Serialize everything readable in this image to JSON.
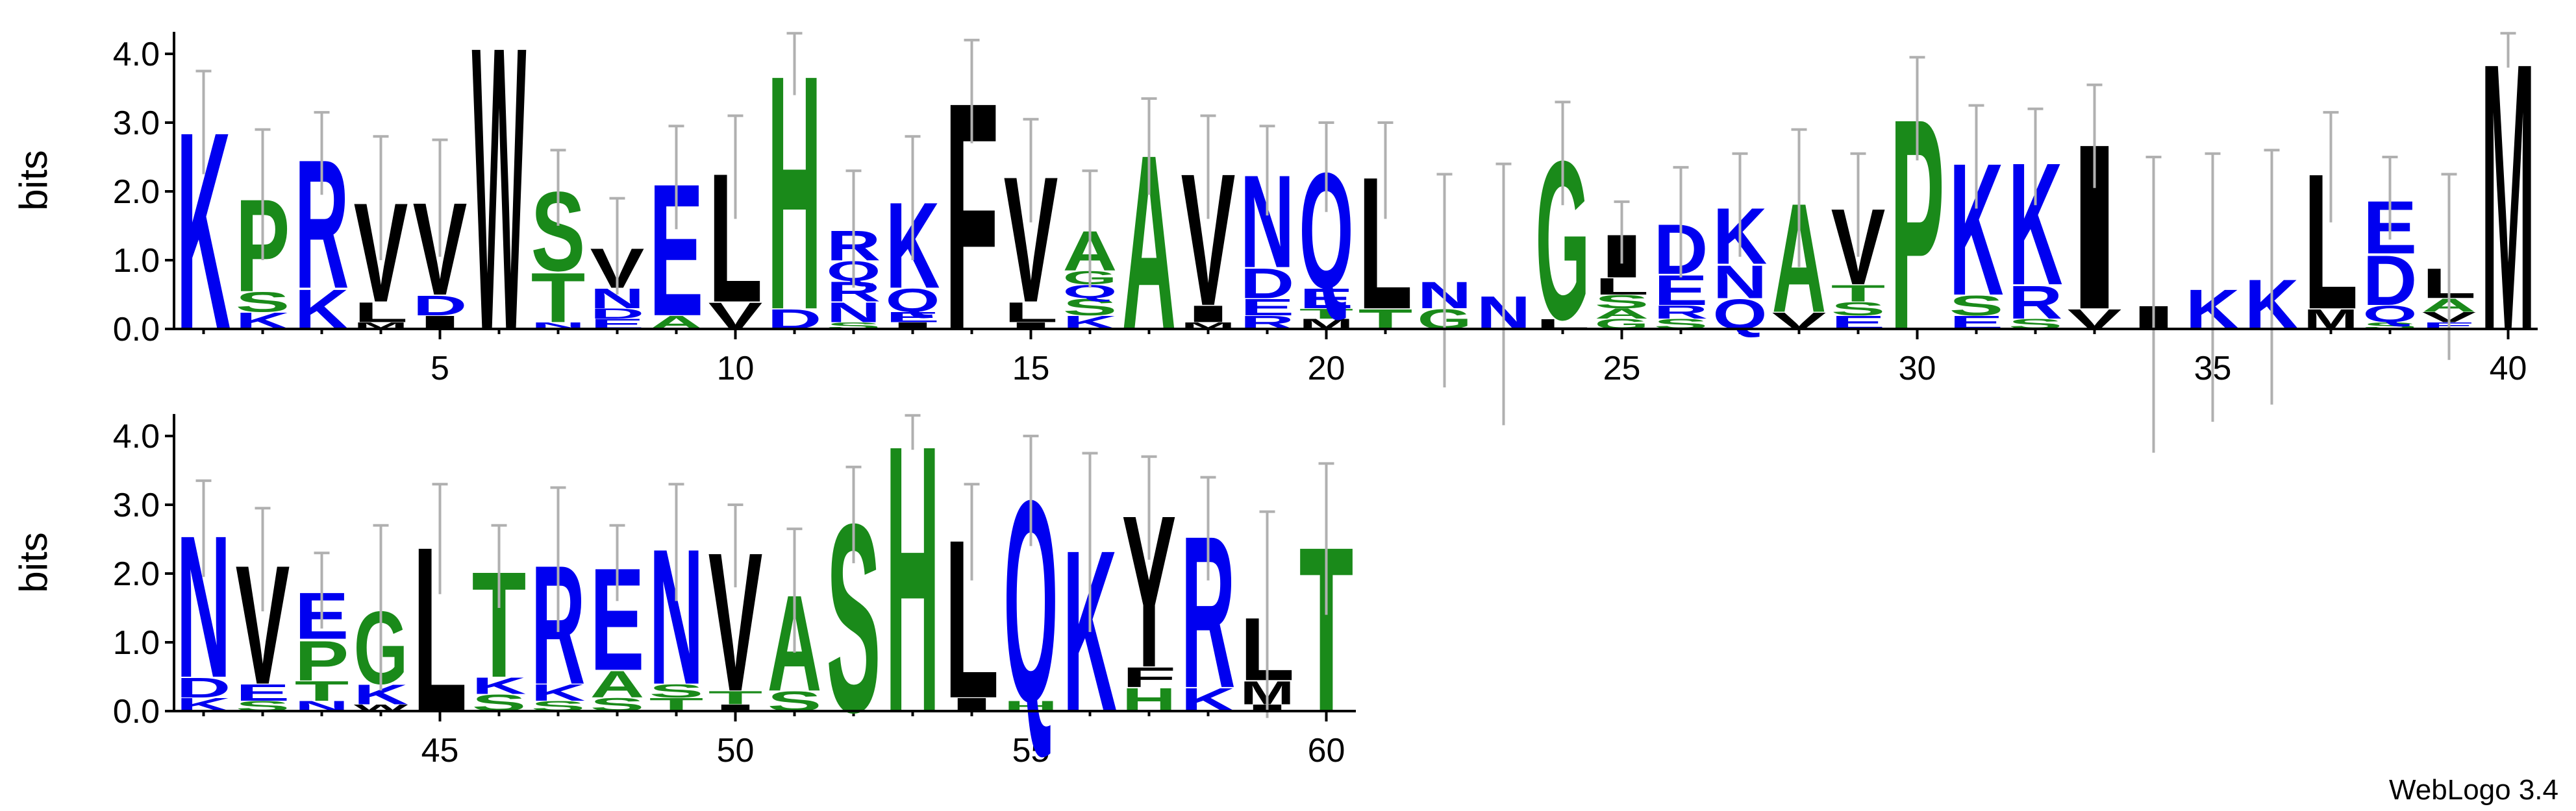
{
  "chart_data": [
    {
      "type": "logo",
      "ylabel": "bits",
      "x": [
        1,
        2,
        3,
        4,
        5,
        6,
        7,
        8,
        9,
        10,
        11,
        12,
        13,
        14,
        15,
        16,
        17,
        18,
        19,
        20,
        21,
        22,
        23,
        24,
        25,
        26,
        27,
        28,
        29,
        30,
        31,
        32,
        33,
        34,
        35,
        36,
        37,
        38,
        39,
        40
      ],
      "letters": [
        [
          "K"
        ],
        [
          "K",
          "S",
          "P"
        ],
        [
          "K",
          "R"
        ],
        [
          "M",
          "L",
          "V"
        ],
        [
          "I",
          "D",
          "V"
        ],
        [
          "W"
        ],
        [
          "N",
          "T",
          "S"
        ],
        [
          "E",
          "D",
          "N",
          "V"
        ],
        [
          "A",
          "E"
        ],
        [
          "V",
          "L"
        ],
        [
          "D",
          "H"
        ],
        [
          "S",
          "N",
          "R",
          "Q",
          "R"
        ],
        [
          "I",
          "E",
          "Q",
          "K"
        ],
        [
          "F"
        ],
        [
          "I",
          "L",
          "V"
        ],
        [
          "K",
          "S",
          "Q",
          "G",
          "A"
        ],
        [
          "A"
        ],
        [
          "M",
          "I",
          "V"
        ],
        [
          "R",
          "E",
          "D",
          "N"
        ],
        [
          "M",
          "T",
          "E",
          "Q"
        ],
        [
          "T",
          "L"
        ],
        [
          "G",
          "N"
        ],
        [
          "N"
        ],
        [
          "L",
          "G"
        ],
        [
          "G",
          "A",
          "S",
          "L",
          "I"
        ],
        [
          "S",
          "R",
          "E",
          "D"
        ],
        [
          "Q",
          "N",
          "K"
        ],
        [
          "V",
          "A"
        ],
        [
          "E",
          "S",
          "T",
          "V"
        ],
        [
          "P"
        ],
        [
          "E",
          "S",
          "K"
        ],
        [
          "S",
          "R",
          "K"
        ],
        [
          "V",
          "I"
        ],
        [
          "I"
        ],
        [
          "K"
        ],
        [
          "K"
        ],
        [
          "M",
          "L"
        ],
        [
          "S",
          "Q",
          "D",
          "E"
        ],
        [
          "E",
          "V",
          "A",
          "L"
        ],
        [
          "M"
        ]
      ],
      "bits": [
        [
          3.0
        ],
        [
          0.25,
          0.3,
          1.4
        ],
        [
          0.6,
          1.95
        ],
        [
          0.1,
          0.3,
          1.5
        ],
        [
          0.2,
          0.3,
          1.4
        ],
        [
          4.3
        ],
        [
          0.1,
          0.75,
          1.2
        ],
        [
          0.15,
          0.15,
          0.3,
          0.6
        ],
        [
          0.2,
          2.0
        ],
        [
          0.4,
          1.95
        ],
        [
          0.3,
          3.55
        ],
        [
          0.1,
          0.3,
          0.3,
          0.3,
          0.45
        ],
        [
          0.1,
          0.15,
          0.35,
          1.3
        ],
        [
          3.45
        ],
        [
          0.1,
          0.3,
          1.9
        ],
        [
          0.2,
          0.25,
          0.2,
          0.2,
          0.6
        ],
        [
          2.65
        ],
        [
          0.1,
          0.25,
          2.0
        ],
        [
          0.2,
          0.25,
          0.45,
          1.4
        ],
        [
          0.15,
          0.15,
          0.3,
          1.75
        ],
        [
          0.3,
          2.0
        ],
        [
          0.3,
          0.4
        ],
        [
          0.5
        ],
        [
          0.15,
          2.4
        ],
        [
          0.15,
          0.15,
          0.2,
          0.25,
          0.65
        ],
        [
          0.15,
          0.2,
          0.45,
          0.75
        ],
        [
          0.45,
          0.5,
          0.85
        ],
        [
          0.25,
          1.65
        ],
        [
          0.2,
          0.2,
          0.25,
          1.15
        ],
        [
          3.2
        ],
        [
          0.2,
          0.3,
          2.0
        ],
        [
          0.15,
          0.5,
          1.85
        ],
        [
          0.3,
          2.5
        ],
        [
          0.35
        ],
        [
          0.6
        ],
        [
          0.75
        ],
        [
          0.3,
          2.05
        ],
        [
          0.1,
          0.25,
          0.75,
          0.8
        ],
        [
          0.1,
          0.15,
          0.2,
          0.45
        ],
        [
          4.05
        ]
      ],
      "errors": [
        0.75,
        0.95,
        0.6,
        0.9,
        0.85,
        0,
        0.55,
        0.7,
        0.75,
        0.75,
        0.45,
        0.85,
        0.9,
        0.75,
        0.75,
        0.85,
        0.7,
        0.75,
        0.65,
        0.65,
        0.7,
        1.55,
        1.9,
        0.75,
        0.45,
        0.8,
        0.75,
        1.0,
        0.75,
        0.75,
        0.75,
        0.7,
        0.75,
        2.15,
        1.95,
        1.85,
        0.8,
        0.6,
        1.35,
        0.25
      ],
      "xlim": [
        0.5,
        40.5
      ],
      "ylim": [
        0,
        4.32
      ],
      "xticks": [
        5,
        10,
        15,
        20,
        25,
        30,
        35,
        40
      ],
      "yticks": [
        {
          "value": 0,
          "label": "0.0"
        },
        {
          "value": 1,
          "label": "1.0"
        },
        {
          "value": 2,
          "label": "2.0"
        },
        {
          "value": 3,
          "label": "3.0"
        },
        {
          "value": 4,
          "label": "4.0"
        }
      ]
    },
    {
      "type": "logo",
      "ylabel": "bits",
      "x": [
        41,
        42,
        43,
        44,
        45,
        46,
        47,
        48,
        49,
        50,
        51,
        52,
        53,
        54,
        55,
        56,
        57,
        58,
        59,
        60
      ],
      "letters": [
        [
          "K",
          "D",
          "N"
        ],
        [
          "S",
          "E",
          "V"
        ],
        [
          "N",
          "T",
          "P",
          "E"
        ],
        [
          "W",
          "K",
          "G"
        ],
        [
          "L"
        ],
        [
          "S",
          "K",
          "T"
        ],
        [
          "S",
          "K",
          "R"
        ],
        [
          "S",
          "A",
          "E"
        ],
        [
          "T",
          "S",
          "N"
        ],
        [
          "I",
          "T",
          "V"
        ],
        [
          "S",
          "A"
        ],
        [
          "S"
        ],
        [
          "H"
        ],
        [
          "I",
          "L"
        ],
        [
          "H",
          "Q"
        ],
        [
          "K"
        ],
        [
          "H",
          "F",
          "Y"
        ],
        [
          "K",
          "R"
        ],
        [
          "I",
          "M",
          "L"
        ],
        [
          "T"
        ]
      ],
      "bits": [
        [
          0.2,
          0.3,
          2.15
        ],
        [
          0.15,
          0.25,
          1.8
        ],
        [
          0.15,
          0.3,
          0.6,
          0.7
        ],
        [
          0.1,
          0.3,
          1.1
        ],
        [
          2.5
        ],
        [
          0.25,
          0.25,
          1.6
        ],
        [
          0.15,
          0.25,
          1.8
        ],
        [
          0.2,
          0.4,
          1.55
        ],
        [
          0.2,
          0.2,
          2.05
        ],
        [
          0.1,
          0.2,
          2.1
        ],
        [
          0.3,
          1.45
        ],
        [
          2.85
        ],
        [
          4.05
        ],
        [
          0.2,
          2.4
        ],
        [
          0.15,
          3.05
        ],
        [
          2.45
        ],
        [
          0.35,
          0.3,
          2.3
        ],
        [
          0.35,
          2.3
        ],
        [
          0.1,
          0.35,
          0.95
        ],
        [
          2.5
        ]
      ],
      "errors": [
        0.7,
        0.75,
        0.55,
        1.2,
        0.8,
        0.6,
        1.05,
        0.55,
        0.85,
        0.6,
        0.9,
        0.7,
        0.25,
        0.7,
        0.8,
        1.3,
        0.75,
        0.75,
        1.5,
        1.1
      ],
      "xlim": [
        40.5,
        60.5
      ],
      "ylim": [
        0,
        4.32
      ],
      "xticks": [
        45,
        50,
        55,
        60
      ],
      "yticks": [
        {
          "value": 0,
          "label": "0.0"
        },
        {
          "value": 1,
          "label": "1.0"
        },
        {
          "value": 2,
          "label": "2.0"
        },
        {
          "value": 3,
          "label": "3.0"
        },
        {
          "value": 4,
          "label": "4.0"
        }
      ]
    }
  ],
  "colors": {
    "P": "#1a8a1a",
    "S": "#1a8a1a",
    "H": "#1a8a1a",
    "A": "#1a8a1a",
    "G": "#1a8a1a",
    "T": "#1a8a1a",
    "K": "#0000f0",
    "R": "#0000f0",
    "E": "#0000f0",
    "N": "#0000f0",
    "Q": "#0000f0",
    "D": "#0000f0",
    "V": "#000000",
    "W": "#000000",
    "L": "#000000",
    "F": "#000000",
    "I": "#000000",
    "M": "#000000",
    "Y": "#000000"
  },
  "footer": "WebLogo 3.4"
}
